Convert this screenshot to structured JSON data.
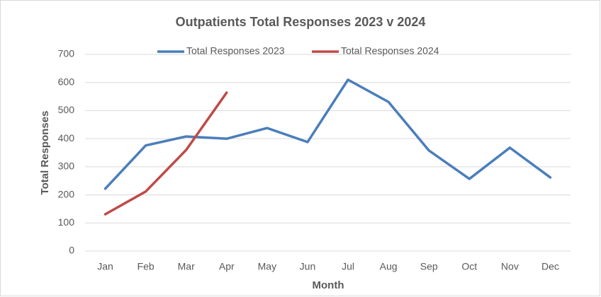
{
  "chart_data": {
    "type": "line",
    "title": "Outpatients Total Responses 2023 v 2024",
    "x_label": "Month",
    "y_label": "Total Responses",
    "categories": [
      "Jan",
      "Feb",
      "Mar",
      "Apr",
      "May",
      "Jun",
      "Jul",
      "Aug",
      "Sep",
      "Oct",
      "Nov",
      "Dec"
    ],
    "series": [
      {
        "name": "Total Responses 2023",
        "color": "#4a7ebb",
        "values": [
          222,
          376,
          408,
          400,
          438,
          388,
          610,
          531,
          358,
          257,
          368,
          262
        ]
      },
      {
        "name": "Total Responses 2024",
        "color": "#be4b48",
        "values": [
          131,
          212,
          360,
          564,
          null,
          null,
          null,
          null,
          null,
          null,
          null,
          null
        ]
      }
    ],
    "ylim": [
      0,
      700
    ],
    "yticks": [
      0,
      100,
      200,
      300,
      400,
      500,
      600,
      700
    ],
    "grid": true,
    "legend": "top"
  }
}
